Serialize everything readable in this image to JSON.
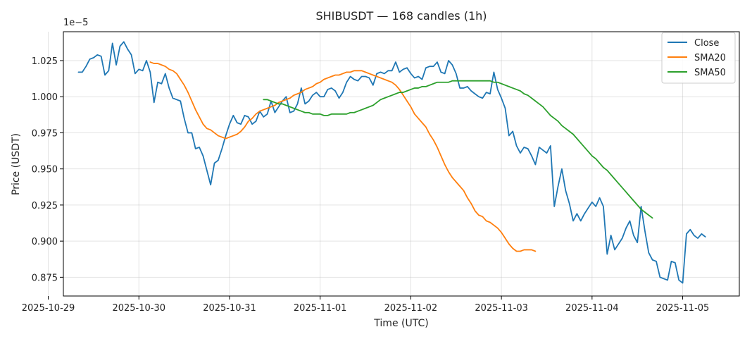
{
  "chart_data": {
    "type": "line",
    "title": "SHIBUSDT — 168 candles (1h)",
    "xlabel": "Time (UTC)",
    "ylabel": "Price (USDT)",
    "y_offset_label": "1e−5",
    "xlim": [
      "2025-10-29T04:00",
      "2025-11-05T15:00"
    ],
    "ylim": [
      0.862,
      1.045
    ],
    "x_ticks": [
      "2025-10-29",
      "2025-10-30",
      "2025-10-31",
      "2025-11-01",
      "2025-11-02",
      "2025-11-03",
      "2025-11-04",
      "2025-11-05"
    ],
    "y_ticks": [
      "0.875",
      "0.900",
      "0.925",
      "0.950",
      "0.975",
      "1.000",
      "1.025"
    ],
    "grid": true,
    "legend_position": "top-right",
    "start": "2025-10-29T08:00",
    "interval": "1h",
    "series": [
      {
        "name": "Close",
        "color": "#1f77b4",
        "values": [
          1.017,
          1.017,
          1.021,
          1.026,
          1.027,
          1.029,
          1.028,
          1.015,
          1.018,
          1.037,
          1.022,
          1.035,
          1.038,
          1.033,
          1.029,
          1.016,
          1.019,
          1.018,
          1.025,
          1.017,
          0.996,
          1.01,
          1.009,
          1.016,
          1.006,
          0.999,
          0.998,
          0.997,
          0.985,
          0.975,
          0.975,
          0.964,
          0.965,
          0.959,
          0.949,
          0.939,
          0.954,
          0.956,
          0.964,
          0.973,
          0.981,
          0.987,
          0.982,
          0.981,
          0.987,
          0.986,
          0.981,
          0.983,
          0.99,
          0.986,
          0.988,
          0.997,
          0.989,
          0.993,
          0.997,
          1.0,
          0.989,
          0.99,
          0.995,
          1.006,
          0.995,
          0.997,
          1.001,
          1.003,
          1.0,
          1.0,
          1.005,
          1.006,
          1.004,
          0.999,
          1.003,
          1.01,
          1.014,
          1.012,
          1.011,
          1.014,
          1.014,
          1.013,
          1.008,
          1.016,
          1.017,
          1.016,
          1.018,
          1.018,
          1.024,
          1.017,
          1.019,
          1.02,
          1.016,
          1.013,
          1.014,
          1.012,
          1.02,
          1.021,
          1.021,
          1.024,
          1.017,
          1.016,
          1.025,
          1.022,
          1.016,
          1.006,
          1.006,
          1.007,
          1.004,
          1.002,
          1.0,
          0.999,
          1.003,
          1.002,
          1.017,
          1.005,
          0.999,
          0.992,
          0.973,
          0.976,
          0.966,
          0.961,
          0.965,
          0.964,
          0.959,
          0.953,
          0.965,
          0.963,
          0.961,
          0.966,
          0.924,
          0.938,
          0.95,
          0.935,
          0.926,
          0.914,
          0.919,
          0.914,
          0.919,
          0.923,
          0.927,
          0.924,
          0.93,
          0.924,
          0.891,
          0.904,
          0.894,
          0.898,
          0.902,
          0.909,
          0.914,
          0.904,
          0.899,
          0.924,
          0.907,
          0.892,
          0.887,
          0.886,
          0.875,
          0.874,
          0.873,
          0.886,
          0.885,
          0.873,
          0.871,
          0.905,
          0.908,
          0.904,
          0.902,
          0.905,
          0.903
        ]
      },
      {
        "name": "SMA20",
        "color": "#ff7f0e",
        "start_index": 19,
        "values": [
          1.024,
          1.023,
          1.023,
          1.022,
          1.021,
          1.019,
          1.018,
          1.016,
          1.012,
          1.008,
          1.003,
          0.997,
          0.991,
          0.986,
          0.981,
          0.978,
          0.977,
          0.975,
          0.973,
          0.972,
          0.971,
          0.972,
          0.973,
          0.974,
          0.976,
          0.979,
          0.983,
          0.985,
          0.988,
          0.99,
          0.991,
          0.992,
          0.993,
          0.994,
          0.996,
          0.997,
          0.998,
          0.999,
          1.001,
          1.002,
          1.003,
          1.005,
          1.006,
          1.007,
          1.009,
          1.01,
          1.012,
          1.013,
          1.014,
          1.015,
          1.015,
          1.016,
          1.017,
          1.017,
          1.018,
          1.018,
          1.018,
          1.017,
          1.016,
          1.015,
          1.014,
          1.013,
          1.012,
          1.011,
          1.01,
          1.008,
          1.005,
          1.001,
          0.997,
          0.993,
          0.988,
          0.985,
          0.982,
          0.979,
          0.974,
          0.97,
          0.965,
          0.959,
          0.953,
          0.948,
          0.944,
          0.941,
          0.938,
          0.935,
          0.93,
          0.926,
          0.921,
          0.918,
          0.917,
          0.914,
          0.913,
          0.911,
          0.909,
          0.906,
          0.902,
          0.898,
          0.895,
          0.893,
          0.893,
          0.894,
          0.894,
          0.894,
          0.893
        ]
      },
      {
        "name": "SMA50",
        "color": "#2ca02c",
        "start_index": 49,
        "values": [
          0.998,
          0.998,
          0.997,
          0.996,
          0.995,
          0.995,
          0.994,
          0.993,
          0.992,
          0.991,
          0.99,
          0.989,
          0.989,
          0.988,
          0.988,
          0.988,
          0.987,
          0.987,
          0.988,
          0.988,
          0.988,
          0.988,
          0.988,
          0.989,
          0.989,
          0.99,
          0.991,
          0.992,
          0.993,
          0.994,
          0.996,
          0.998,
          0.999,
          1.0,
          1.001,
          1.002,
          1.003,
          1.003,
          1.004,
          1.005,
          1.006,
          1.006,
          1.007,
          1.007,
          1.008,
          1.009,
          1.01,
          1.01,
          1.01,
          1.01,
          1.011,
          1.011,
          1.011,
          1.011,
          1.011,
          1.011,
          1.011,
          1.011,
          1.011,
          1.011,
          1.011,
          1.01,
          1.01,
          1.009,
          1.008,
          1.007,
          1.006,
          1.005,
          1.004,
          1.002,
          1.001,
          0.999,
          0.997,
          0.995,
          0.993,
          0.99,
          0.987,
          0.985,
          0.983,
          0.98,
          0.978,
          0.976,
          0.974,
          0.971,
          0.968,
          0.965,
          0.962,
          0.959,
          0.957,
          0.954,
          0.951,
          0.949,
          0.946,
          0.943,
          0.94,
          0.937,
          0.934,
          0.931,
          0.928,
          0.925,
          0.922,
          0.92,
          0.918,
          0.916
        ]
      }
    ]
  }
}
